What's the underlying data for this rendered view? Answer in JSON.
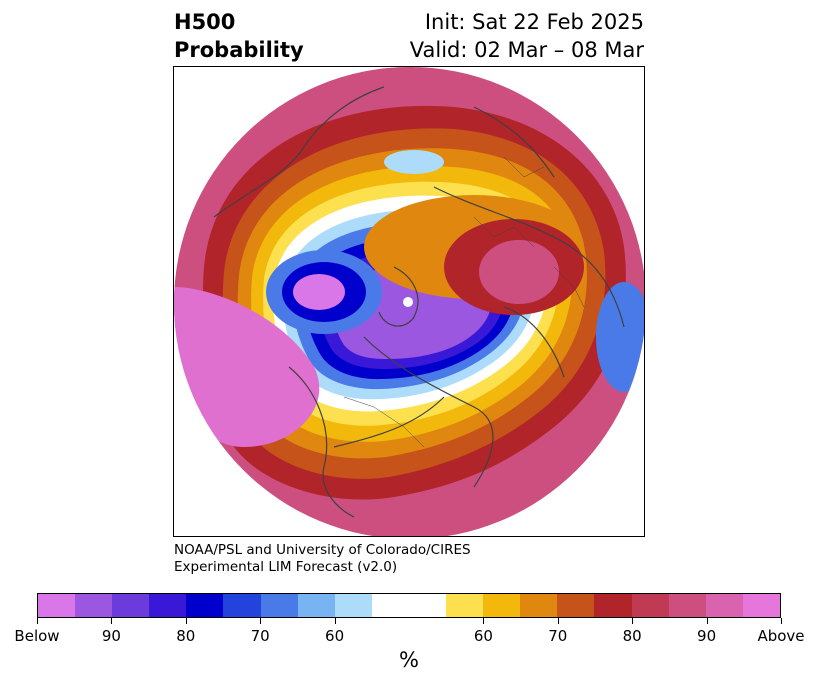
{
  "title": {
    "line1": "H500",
    "line2": "Probability"
  },
  "dates": {
    "init": "Init: Sat 22 Feb 2025",
    "valid": "Valid: 02 Mar – 08 Mar"
  },
  "credits": {
    "line1": "NOAA/PSL and University of Colorado/CIRES",
    "line2": "Experimental LIM Forecast (v2.0)"
  },
  "colorbar": {
    "label": "%",
    "colors": [
      "#d977e8",
      "#9b57e0",
      "#6b3bdc",
      "#3a18d8",
      "#0000cc",
      "#2244dd",
      "#4a7ae8",
      "#78b4f2",
      "#acdcfa",
      "#ffffff",
      "#ffffff",
      "#fde04e",
      "#f3b80c",
      "#e0870f",
      "#c5531a",
      "#b1242a",
      "#bf3a52",
      "#cc4f80",
      "#d963ae",
      "#e675dc"
    ],
    "tick_labels": [
      "Below",
      "90",
      "80",
      "70",
      "60",
      "60",
      "70",
      "80",
      "90",
      "Above"
    ]
  },
  "map_colors": {
    "above_strong": "#cc4f80",
    "above_extreme": "#d963ae",
    "above_outer": "#e070d0",
    "red": "#b1242a",
    "dark_orange": "#c5531a",
    "orange": "#e0870f",
    "gold": "#f3b80c",
    "yellow": "#fde04e",
    "light_blue": "#acdcfa",
    "mid_blue": "#4a7ae8",
    "blue": "#0000cc",
    "indigo": "#3a18d8",
    "violet": "#6b3bdc",
    "purple": "#9b57e0",
    "below_extreme": "#d977e8",
    "coastline": "#404040"
  }
}
